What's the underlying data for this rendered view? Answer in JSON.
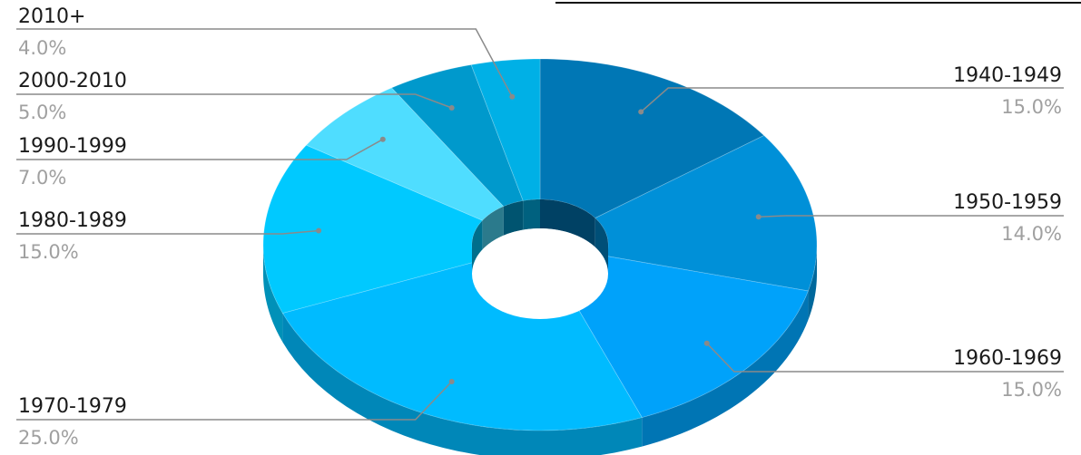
{
  "chart_data": {
    "type": "pie",
    "variant": "3d-donut",
    "title": "",
    "legend": "none",
    "slices": [
      {
        "label": "1940-1949",
        "value": 15.0,
        "pct_text": "15.0%",
        "color": "#0077B5"
      },
      {
        "label": "1950-1959",
        "value": 14.0,
        "pct_text": "14.0%",
        "color": "#0090D8"
      },
      {
        "label": "1960-1969",
        "value": 15.0,
        "pct_text": "15.0%",
        "color": "#00A2FA"
      },
      {
        "label": "1970-1979",
        "value": 25.0,
        "pct_text": "25.0%",
        "color": "#00BBFF"
      },
      {
        "label": "1980-1989",
        "value": 15.0,
        "pct_text": "15.0%",
        "color": "#00C9FF"
      },
      {
        "label": "1990-1999",
        "value": 7.0,
        "pct_text": "7.0%",
        "color": "#4FDDFF"
      },
      {
        "label": "2000-2010",
        "value": 5.0,
        "pct_text": "5.0%",
        "color": "#0099CC"
      },
      {
        "label": "2010+",
        "value": 4.0,
        "pct_text": "4.0%",
        "color": "#00B0E6"
      }
    ]
  }
}
